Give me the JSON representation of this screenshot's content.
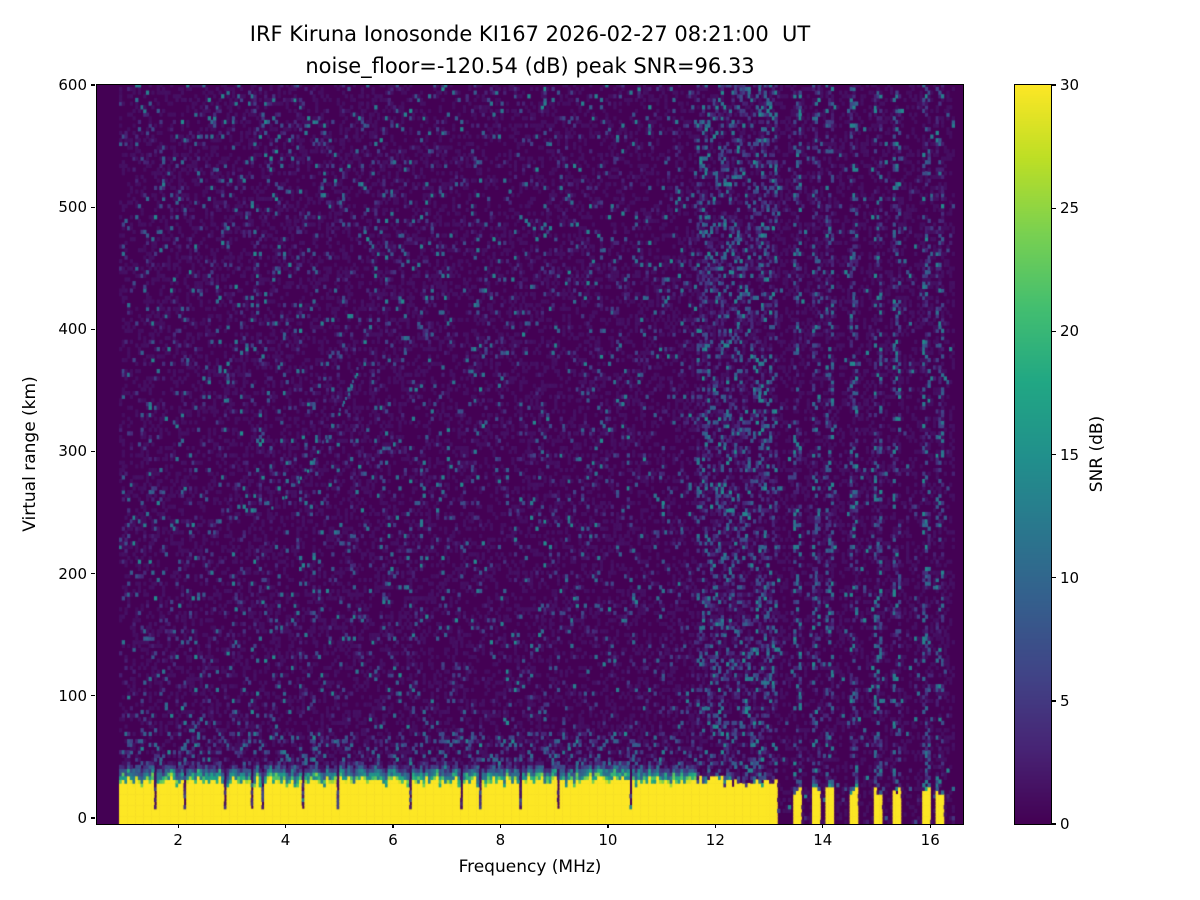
{
  "title_line1": "IRF Kiruna Ionosonde KI167 2026-02-27 08:21:00  UT",
  "title_line2": "noise_floor=-120.54 (dB) peak SNR=96.33",
  "chart_data": {
    "type": "heatmap",
    "title_line1": "IRF Kiruna Ionosonde KI167 2026-02-27 08:21:00  UT",
    "title_line2": "noise_floor=-120.54 (dB) peak SNR=96.33",
    "xlabel": "Frequency (MHz)",
    "ylabel": "Virtual range (km)",
    "xlim": [
      0.49,
      16.61
    ],
    "ylim": [
      -5,
      600
    ],
    "xticks": [
      2,
      4,
      6,
      8,
      10,
      12,
      14,
      16
    ],
    "yticks": [
      0,
      100,
      200,
      300,
      400,
      500,
      600
    ],
    "grid": false,
    "colormap": "viridis",
    "background_color": "#440154",
    "colorbar": {
      "label": "SNR (dB)",
      "min": 0,
      "max": 30,
      "ticks": [
        0,
        5,
        10,
        15,
        20,
        25,
        30
      ]
    },
    "freq_range": [
      0.9,
      16.45
    ],
    "ground_band": {
      "freq_start": 0.9,
      "freq_end": 11.65,
      "bottom_km": -5,
      "top_km_mean": 28,
      "top_km_jitter": 8,
      "snr_db": 30,
      "notch_freqs_mhz": [
        1.55,
        2.1,
        2.85,
        3.35,
        3.55,
        4.3,
        4.95,
        6.3,
        7.25,
        7.6,
        8.35,
        9.05,
        10.4
      ]
    },
    "rfi_bars": {
      "freq_start": 11.7,
      "freq_end": 16.45,
      "bar_freqs_mhz": [
        11.7,
        11.85,
        12.0,
        12.15,
        12.3,
        12.45,
        12.6,
        12.75,
        12.9,
        13.05,
        13.5,
        13.85,
        14.1,
        14.55,
        15.0,
        15.35,
        15.9,
        16.15
      ],
      "bar_half_width_mhz": 0.055,
      "top_km_dense": 24,
      "top_km_sparse": 17,
      "snr_db": 30
    },
    "echo_trace": {
      "snr_db": 12,
      "points": [
        [
          3.75,
          252
        ],
        [
          3.95,
          260
        ],
        [
          4.15,
          270
        ],
        [
          4.35,
          282
        ],
        [
          4.55,
          296
        ],
        [
          4.75,
          312
        ],
        [
          4.95,
          328
        ],
        [
          5.1,
          342
        ],
        [
          5.25,
          356
        ],
        [
          5.35,
          368
        ]
      ]
    },
    "noise": {
      "background_snr_db": 1,
      "speckle_fraction_left": 0.08,
      "speckle_fraction_right": 0.03,
      "speckle_max_db": 15,
      "vertical_noisy_freqs_mhz": [
        11.7,
        11.85,
        12.0,
        12.15,
        12.3,
        12.45,
        12.6,
        12.75,
        12.9,
        13.05,
        13.5,
        13.85,
        14.1,
        14.55,
        15.0,
        15.35,
        15.9,
        16.15
      ],
      "vertical_noisy_fraction": 0.3
    }
  }
}
